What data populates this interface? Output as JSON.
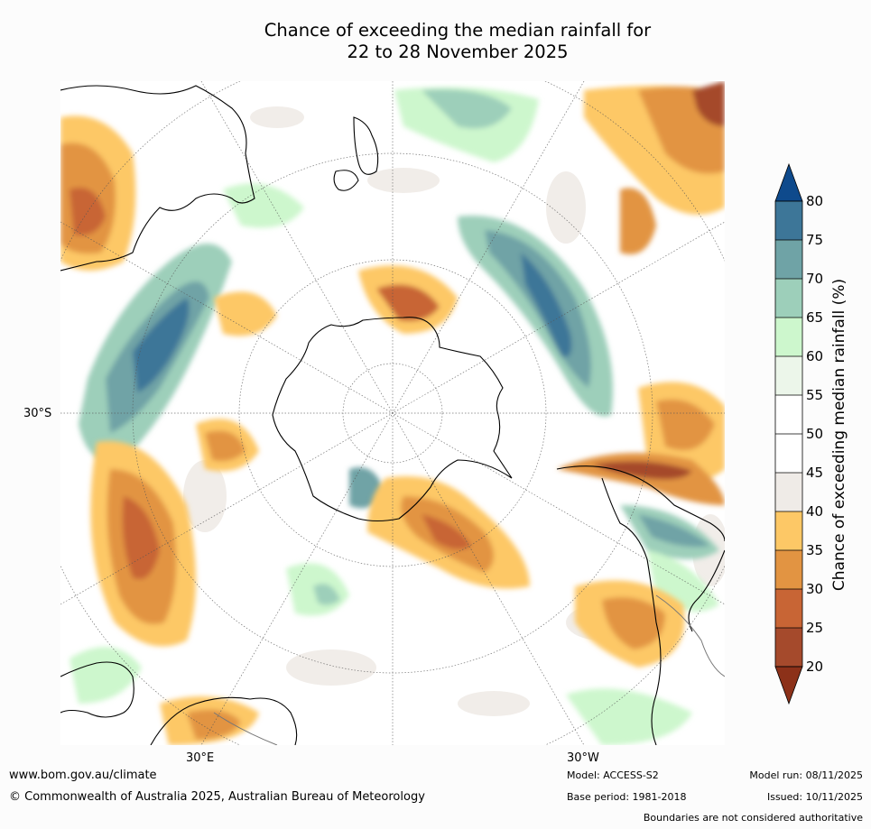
{
  "title": {
    "line1": "Chance of exceeding the median rainfall for",
    "line2": "22 to 28 November 2025"
  },
  "map": {
    "lat_label": "30°S",
    "lon_label_east": "30°E",
    "lon_label_west": "30°W"
  },
  "colorbar": {
    "title": "Chance of exceeding median rainfall (%)",
    "ticks": [
      "80",
      "75",
      "70",
      "65",
      "60",
      "55",
      "50",
      "45",
      "40",
      "35",
      "30",
      "25",
      "20"
    ],
    "colors": {
      "above_80": "#0e4a8c",
      "75_80": "#3d7698",
      "70_75": "#6fa3a6",
      "65_70": "#9dcfba",
      "60_65": "#cdf7cd",
      "55_60": "#ecf6ea",
      "50_55": "#ffffff",
      "45_50": "#ffffff",
      "40_45": "#efebe7",
      "35_40": "#fdc866",
      "30_35": "#e29442",
      "25_30": "#c86535",
      "20_25": "#a54a2c",
      "below_20": "#8c3119"
    }
  },
  "footer": {
    "website": "www.bom.gov.au/climate",
    "copyright": "© Commonwealth of Australia 2025, Australian Bureau of Meteorology",
    "model": "Model: ACCESS-S2",
    "base_period": "Base period: 1981-2018",
    "model_run": "Model run: 08/11/2025",
    "issued": "Issued: 10/11/2025",
    "disclaimer": "Boundaries are not considered authoritative"
  }
}
